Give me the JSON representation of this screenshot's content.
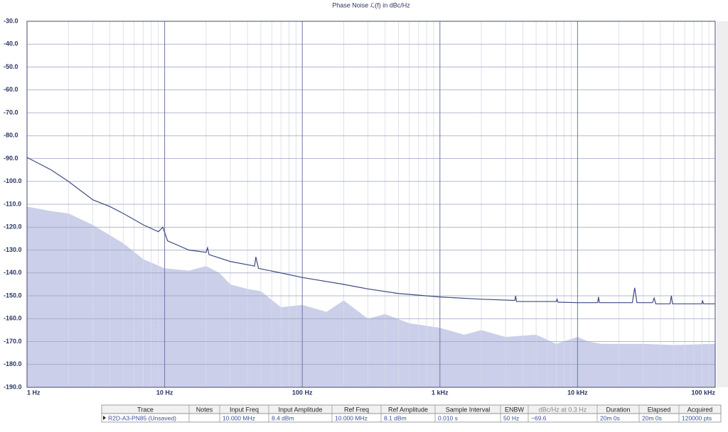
{
  "chart_data": {
    "type": "line",
    "title": "Phase Noise ℒ(f) in dBc/Hz",
    "xscale": "log",
    "xlim": [
      1,
      100000
    ],
    "ylim": [
      -190,
      -30
    ],
    "xticks": [
      {
        "value": 1,
        "label": "1 Hz"
      },
      {
        "value": 10,
        "label": "10 Hz"
      },
      {
        "value": 100,
        "label": "100 Hz"
      },
      {
        "value": 1000,
        "label": "1 kHz"
      },
      {
        "value": 10000,
        "label": "10 kHz"
      },
      {
        "value": 100000,
        "label": "100 kHz"
      }
    ],
    "xminorticks": [
      2,
      3,
      4,
      5,
      6,
      7,
      8,
      9,
      20,
      30,
      40,
      50,
      60,
      70,
      80,
      90,
      200,
      300,
      400,
      500,
      600,
      700,
      800,
      900,
      2000,
      3000,
      4000,
      5000,
      6000,
      7000,
      8000,
      9000,
      20000,
      30000,
      40000,
      50000,
      60000,
      70000,
      80000,
      90000
    ],
    "yticks": [
      {
        "value": -30,
        "label": "-30.0"
      },
      {
        "value": -40,
        "label": "-40.0"
      },
      {
        "value": -50,
        "label": "-50.0"
      },
      {
        "value": -60,
        "label": "-60.0"
      },
      {
        "value": -70,
        "label": "-70.0"
      },
      {
        "value": -80,
        "label": "-80.0"
      },
      {
        "value": -90,
        "label": "-90.0"
      },
      {
        "value": -100,
        "label": "-100.0"
      },
      {
        "value": -110,
        "label": "-110.0"
      },
      {
        "value": -120,
        "label": "-120.0"
      },
      {
        "value": -130,
        "label": "-130.0"
      },
      {
        "value": -140,
        "label": "-140.0"
      },
      {
        "value": -150,
        "label": "-150.0"
      },
      {
        "value": -160,
        "label": "-160.0"
      },
      {
        "value": -170,
        "label": "-170.0"
      },
      {
        "value": -180,
        "label": "-180.0"
      },
      {
        "value": -190,
        "label": "-190.0"
      }
    ],
    "grid": true,
    "series": [
      {
        "kind": "area",
        "color": "#cbcfe9",
        "x": [
          1,
          1.5,
          2,
          3,
          5,
          7,
          10,
          15,
          20,
          25,
          30,
          40,
          50,
          70,
          100,
          150,
          200,
          300,
          400,
          600,
          1000,
          1500,
          2000,
          3000,
          5000,
          7000,
          10000,
          12000,
          15000,
          30000,
          50000,
          100000
        ],
        "values": [
          -111,
          -113,
          -114,
          -119,
          -127,
          -134,
          -138,
          -139,
          -137,
          -140,
          -145,
          -147,
          -148,
          -155,
          -154,
          -157,
          -152,
          -160,
          -158,
          -162,
          -164,
          -167,
          -165,
          -168,
          -167,
          -171,
          -168,
          -170,
          -171,
          -171,
          -171.5,
          -171
        ]
      },
      {
        "kind": "line",
        "color": "#3d4b80",
        "x": [
          1,
          1.5,
          2,
          3,
          4,
          5,
          7,
          9,
          9.7,
          10.5,
          15,
          20,
          20.5,
          21,
          30,
          45,
          46,
          48,
          70,
          100,
          200,
          300,
          500,
          1000,
          2000,
          3500,
          3550,
          3600,
          7000,
          7100,
          7200,
          10000,
          14000,
          14200,
          14400,
          25000,
          26000,
          27000,
          35000,
          36000,
          37000,
          47000,
          48000,
          49000,
          80000,
          81000,
          82000,
          100000
        ],
        "values": [
          -89.5,
          -95,
          -100,
          -108,
          -111,
          -114,
          -119,
          -122,
          -120,
          -126,
          -130,
          -131,
          -129,
          -132,
          -135,
          -137,
          -133,
          -138,
          -140,
          -142,
          -145,
          -147,
          -149,
          -150.5,
          -151.5,
          -152,
          -150,
          -152.5,
          -152.5,
          -151.5,
          -152.8,
          -153,
          -153,
          -150.5,
          -153,
          -153,
          -146.5,
          -153,
          -153,
          -151,
          -153.5,
          -153.5,
          -150,
          -153.5,
          -153.5,
          -152,
          -153.5,
          -153.5
        ]
      }
    ]
  },
  "table": {
    "columns": [
      "Trace",
      "Notes",
      "Input Freq",
      "Input Amplitude",
      "Ref Freq",
      "Ref Amplitude",
      "Sample Interval",
      "ENBW",
      "dBc/Hz at 0.3 Hz",
      "Duration",
      "Elapsed",
      "Acquired"
    ],
    "rows": [
      [
        "R2D-A3-PN85 (Unsaved)",
        null,
        "10.000 MHz",
        "8.4 dBm",
        "10.000 MHz",
        "8.1 dBm",
        "0.010 s",
        "50 Hz",
        "~69.6",
        "20m 0s",
        "20m 0s",
        "120000 pts"
      ]
    ]
  }
}
